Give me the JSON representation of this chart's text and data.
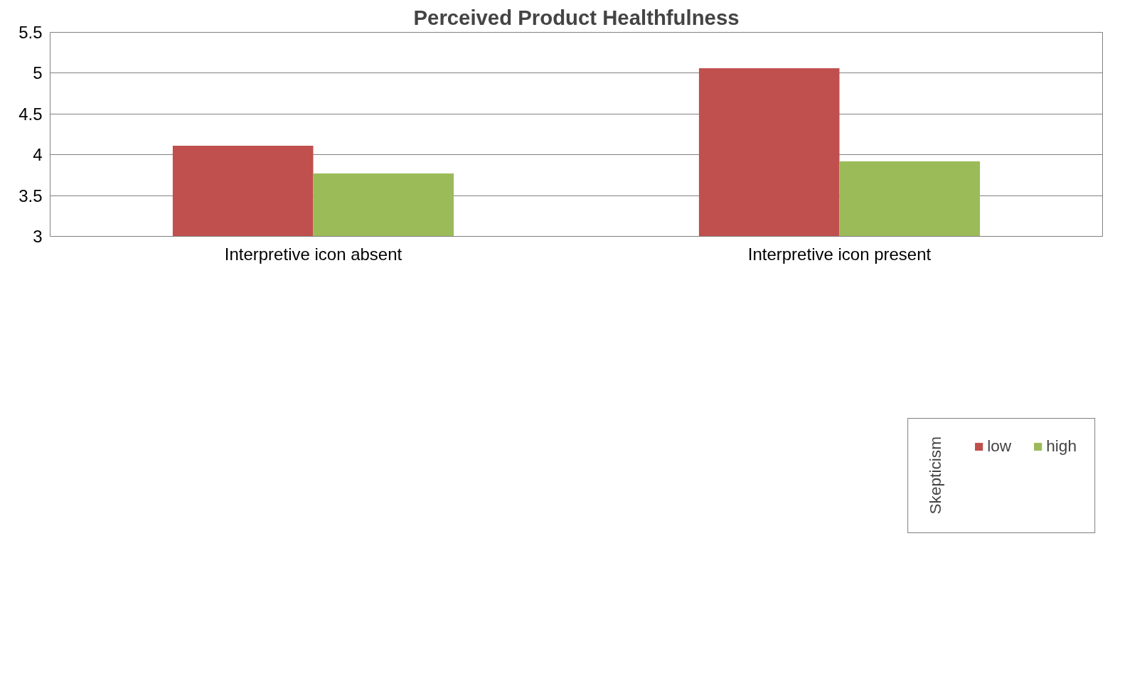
{
  "chart_data": {
    "type": "bar",
    "title": "Perceived Product Healthfulness",
    "categories": [
      "Interpretive icon absent",
      "Interpretive icon present"
    ],
    "series": [
      {
        "name": "low",
        "color": "#c0504d",
        "values": [
          4.11,
          5.06
        ]
      },
      {
        "name": "high",
        "color": "#9bbb59",
        "values": [
          3.77,
          3.92
        ]
      }
    ],
    "legend_title": "Skepticism",
    "legend": "bottom",
    "ylim": [
      3,
      5.5
    ],
    "yticks": [
      3,
      3.5,
      4,
      4.5,
      5,
      5.5
    ],
    "grid": "y"
  }
}
